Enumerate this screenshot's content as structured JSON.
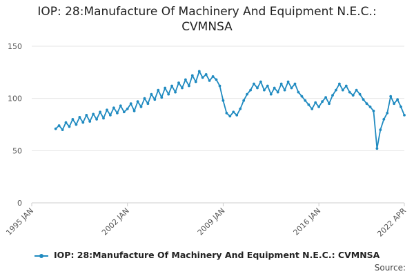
{
  "title_line1": "IOP: 28:Manufacture Of Machinery And Equipment N.E.C.:",
  "title_line2": "CVMNSA",
  "source_label": "Source:",
  "colors": {
    "series": "#1f8ac0",
    "grid": "#e6e6e6",
    "axis_text": "#555555"
  },
  "chart_data": {
    "type": "line",
    "title": "IOP: 28:Manufacture Of Machinery And Equipment N.E.C.: CVMNSA",
    "xlabel": "",
    "ylabel": "",
    "ylim": [
      0,
      150
    ],
    "y_ticks": [
      0,
      50,
      100,
      150
    ],
    "x_range": [
      "1995-01",
      "2022-04"
    ],
    "x_ticks": [
      {
        "date": "1995-01",
        "label": "1995 JAN"
      },
      {
        "date": "2002-01",
        "label": "2002 JAN"
      },
      {
        "date": "2009-01",
        "label": "2009 JAN"
      },
      {
        "date": "2016-01",
        "label": "2016 JAN"
      },
      {
        "date": "2022-04",
        "label": "2022 APR"
      }
    ],
    "grid": true,
    "legend_position": "bottom",
    "series": [
      {
        "name": "IOP: 28:Manufacture Of Machinery And Equipment N.E.C.: CVMNSA",
        "points": [
          [
            "1996-10",
            71
          ],
          [
            "1997-01",
            74
          ],
          [
            "1997-04",
            70
          ],
          [
            "1997-07",
            77
          ],
          [
            "1997-10",
            73
          ],
          [
            "1998-01",
            80
          ],
          [
            "1998-04",
            75
          ],
          [
            "1998-07",
            82
          ],
          [
            "1998-10",
            77
          ],
          [
            "1999-01",
            84
          ],
          [
            "1999-04",
            78
          ],
          [
            "1999-07",
            85
          ],
          [
            "1999-10",
            80
          ],
          [
            "2000-01",
            87
          ],
          [
            "2000-04",
            81
          ],
          [
            "2000-07",
            89
          ],
          [
            "2000-10",
            84
          ],
          [
            "2001-01",
            91
          ],
          [
            "2001-04",
            86
          ],
          [
            "2001-07",
            93
          ],
          [
            "2001-10",
            87
          ],
          [
            "2002-01",
            90
          ],
          [
            "2002-04",
            95
          ],
          [
            "2002-07",
            88
          ],
          [
            "2002-10",
            97
          ],
          [
            "2003-01",
            92
          ],
          [
            "2003-04",
            100
          ],
          [
            "2003-07",
            95
          ],
          [
            "2003-10",
            104
          ],
          [
            "2004-01",
            99
          ],
          [
            "2004-04",
            108
          ],
          [
            "2004-07",
            101
          ],
          [
            "2004-10",
            110
          ],
          [
            "2005-01",
            104
          ],
          [
            "2005-04",
            112
          ],
          [
            "2005-07",
            106
          ],
          [
            "2005-10",
            115
          ],
          [
            "2006-01",
            110
          ],
          [
            "2006-04",
            118
          ],
          [
            "2006-07",
            112
          ],
          [
            "2006-10",
            122
          ],
          [
            "2007-01",
            116
          ],
          [
            "2007-04",
            126
          ],
          [
            "2007-07",
            120
          ],
          [
            "2007-10",
            123
          ],
          [
            "2008-01",
            117
          ],
          [
            "2008-04",
            121
          ],
          [
            "2008-07",
            118
          ],
          [
            "2008-10",
            112
          ],
          [
            "2009-01",
            98
          ],
          [
            "2009-04",
            86
          ],
          [
            "2009-07",
            83
          ],
          [
            "2009-10",
            87
          ],
          [
            "2010-01",
            84
          ],
          [
            "2010-04",
            90
          ],
          [
            "2010-07",
            98
          ],
          [
            "2010-10",
            104
          ],
          [
            "2011-01",
            108
          ],
          [
            "2011-04",
            114
          ],
          [
            "2011-07",
            110
          ],
          [
            "2011-10",
            116
          ],
          [
            "2012-01",
            108
          ],
          [
            "2012-04",
            112
          ],
          [
            "2012-07",
            104
          ],
          [
            "2012-10",
            110
          ],
          [
            "2013-01",
            106
          ],
          [
            "2013-04",
            114
          ],
          [
            "2013-07",
            108
          ],
          [
            "2013-10",
            116
          ],
          [
            "2014-01",
            110
          ],
          [
            "2014-04",
            114
          ],
          [
            "2014-07",
            106
          ],
          [
            "2014-10",
            102
          ],
          [
            "2015-01",
            98
          ],
          [
            "2015-04",
            94
          ],
          [
            "2015-07",
            90
          ],
          [
            "2015-10",
            96
          ],
          [
            "2016-01",
            92
          ],
          [
            "2016-04",
            97
          ],
          [
            "2016-07",
            101
          ],
          [
            "2016-10",
            95
          ],
          [
            "2017-01",
            103
          ],
          [
            "2017-04",
            108
          ],
          [
            "2017-07",
            114
          ],
          [
            "2017-10",
            108
          ],
          [
            "2018-01",
            112
          ],
          [
            "2018-04",
            106
          ],
          [
            "2018-07",
            103
          ],
          [
            "2018-10",
            108
          ],
          [
            "2019-01",
            104
          ],
          [
            "2019-04",
            99
          ],
          [
            "2019-07",
            95
          ],
          [
            "2019-10",
            92
          ],
          [
            "2020-01",
            88
          ],
          [
            "2020-04",
            52
          ],
          [
            "2020-07",
            70
          ],
          [
            "2020-10",
            80
          ],
          [
            "2021-01",
            86
          ],
          [
            "2021-04",
            102
          ],
          [
            "2021-07",
            95
          ],
          [
            "2021-10",
            99
          ],
          [
            "2022-01",
            92
          ],
          [
            "2022-04",
            84
          ]
        ]
      }
    ]
  }
}
